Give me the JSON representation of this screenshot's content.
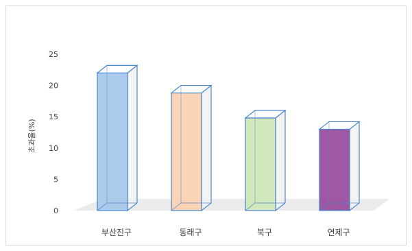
{
  "chart_data": {
    "type": "bar",
    "ylabel": "초과율(%)",
    "xlabel": "",
    "categories": [
      "부산진구",
      "동래구",
      "북구",
      "연제구"
    ],
    "values": [
      22,
      18.8,
      14.8,
      13
    ],
    "yticks": [
      0,
      5,
      10,
      15,
      20,
      25
    ],
    "ylim": [
      0,
      25
    ],
    "grid": false,
    "legend": "none",
    "three_d": true,
    "colors": [
      "#a9c8ea",
      "#fbd2b2",
      "#cfe8b8",
      "#9a4f9f"
    ],
    "edge_colors": [
      "#4a87d0",
      "#4a87d0",
      "#4a87d0",
      "#4a87d0"
    ],
    "floor_color": "#ebebeb"
  }
}
